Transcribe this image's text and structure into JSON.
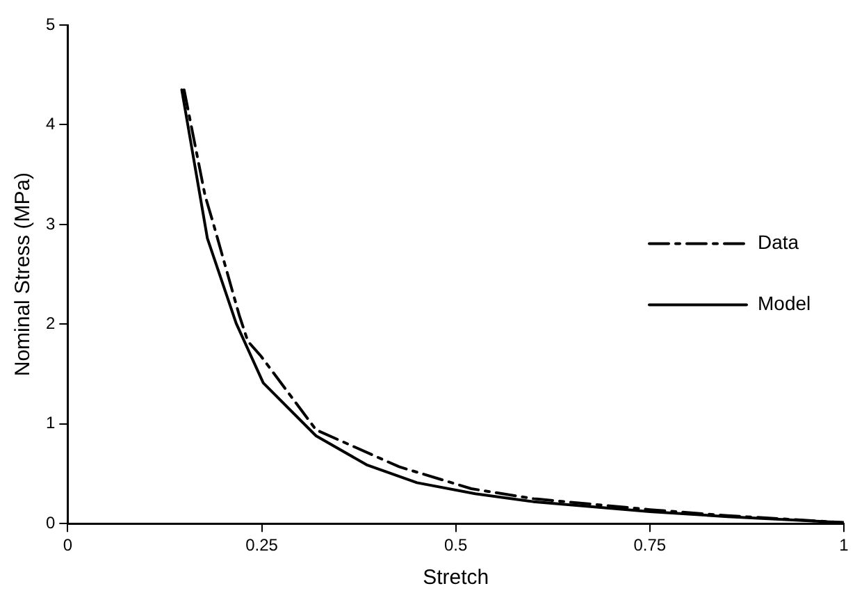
{
  "chart_data": {
    "type": "line",
    "xlabel": "Stretch",
    "ylabel": "Nominal Stress (MPa)",
    "xlim": [
      0,
      1
    ],
    "xticks": [
      0,
      0.25,
      0.5,
      0.75,
      1
    ],
    "ylim": [
      0,
      5
    ],
    "yticks": [
      0,
      1,
      2,
      3,
      4,
      5
    ],
    "grid": false,
    "legend": "right",
    "marker": "none",
    "series": [
      {
        "name": "Data",
        "color": "#000000",
        "line_style": "dashed",
        "x": [
          0.15,
          0.177,
          0.188,
          0.221,
          0.232,
          0.249,
          0.32,
          0.427,
          0.52,
          0.6,
          0.75,
          0.85,
          1
        ],
        "values": [
          4.35,
          3.29,
          3.0,
          2.09,
          1.83,
          1.68,
          0.94,
          0.57,
          0.35,
          0.25,
          0.14,
          0.08,
          0.01
        ]
      },
      {
        "name": "Model",
        "color": "#000000",
        "line_style": "solid",
        "x": [
          0.147,
          0.18,
          0.217,
          0.252,
          0.32,
          0.385,
          0.45,
          0.525,
          0.6,
          0.75,
          0.85,
          1
        ],
        "values": [
          4.35,
          2.86,
          2.01,
          1.41,
          0.88,
          0.59,
          0.41,
          0.3,
          0.22,
          0.12,
          0.07,
          0.01
        ]
      }
    ]
  }
}
